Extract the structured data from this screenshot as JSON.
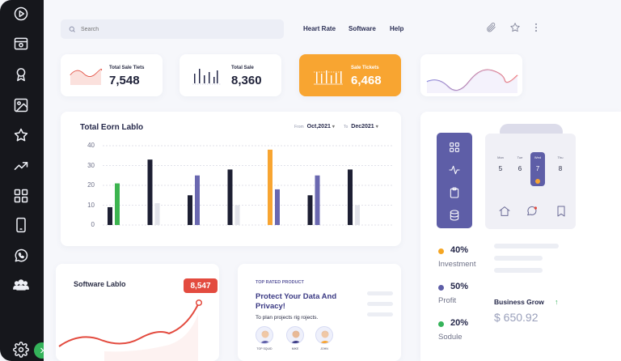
{
  "search": {
    "placeholder": "Search"
  },
  "nav": [
    "Heart Rate",
    "Software",
    "Help"
  ],
  "stats": [
    {
      "label": "Total Sale Tiets",
      "value": "7,548"
    },
    {
      "label": "Total Sale",
      "value": "8,360"
    },
    {
      "label": "Sale Tickets",
      "value": "6,468"
    }
  ],
  "earn_chart": {
    "title": "Total Eorn Lablo",
    "from_label": "From",
    "from_value": "Oct,2021",
    "to_label": "To",
    "to_value": "Dec2021",
    "chart_data": {
      "type": "bar",
      "title": "Total Eorn Lablo",
      "ylim": [
        0,
        40
      ],
      "yticks": [
        0,
        10,
        20,
        30,
        40
      ],
      "grid": true,
      "groups": [
        [
          {
            "v": 9,
            "c": "#1d1f33"
          },
          {
            "v": 21,
            "c": "#3cb44f"
          }
        ],
        [
          {
            "v": 33,
            "c": "#1d1f33"
          },
          {
            "v": 11,
            "c": "#e2e3ea"
          }
        ],
        [
          {
            "v": 15,
            "c": "#1d1f33"
          },
          {
            "v": 25,
            "c": "#6a68b0"
          }
        ],
        [
          {
            "v": 28,
            "c": "#1d1f33"
          },
          {
            "v": 10,
            "c": "#e2e3ea"
          }
        ],
        [
          {
            "v": 38,
            "c": "#f8a531"
          },
          {
            "v": 18,
            "c": "#6a68b0"
          }
        ],
        [
          {
            "v": 15,
            "c": "#1d1f33"
          },
          {
            "v": 25,
            "c": "#6a68b0"
          }
        ],
        [
          {
            "v": 28,
            "c": "#1d1f33"
          },
          {
            "v": 10,
            "c": "#e2e3ea"
          }
        ]
      ]
    }
  },
  "software": {
    "title": "Software Lablo",
    "badge": "8,547"
  },
  "product": {
    "eyebrow": "TOP RATED PRODUCT",
    "title": "Protect Your Data And Privacy!",
    "desc": "To plan projects rig rojects.",
    "avatars": [
      "TOP SQUID",
      "MIKE",
      "JOHN"
    ]
  },
  "calendar": {
    "days": [
      {
        "day": "Mon",
        "num": "5"
      },
      {
        "day": "Tue",
        "num": "6"
      },
      {
        "day": "Wed",
        "num": "7"
      },
      {
        "day": "Thu",
        "num": "8"
      }
    ]
  },
  "legend": [
    {
      "pct": "40%",
      "name": "Investment",
      "color": "#f5a623"
    },
    {
      "pct": "50%",
      "name": "Profit",
      "color": "#5e5ea7"
    },
    {
      "pct": "20%",
      "name": "Sodule",
      "color": "#36b35a"
    }
  ],
  "business": {
    "title": "Business Grow",
    "value": "$ 650.92"
  }
}
